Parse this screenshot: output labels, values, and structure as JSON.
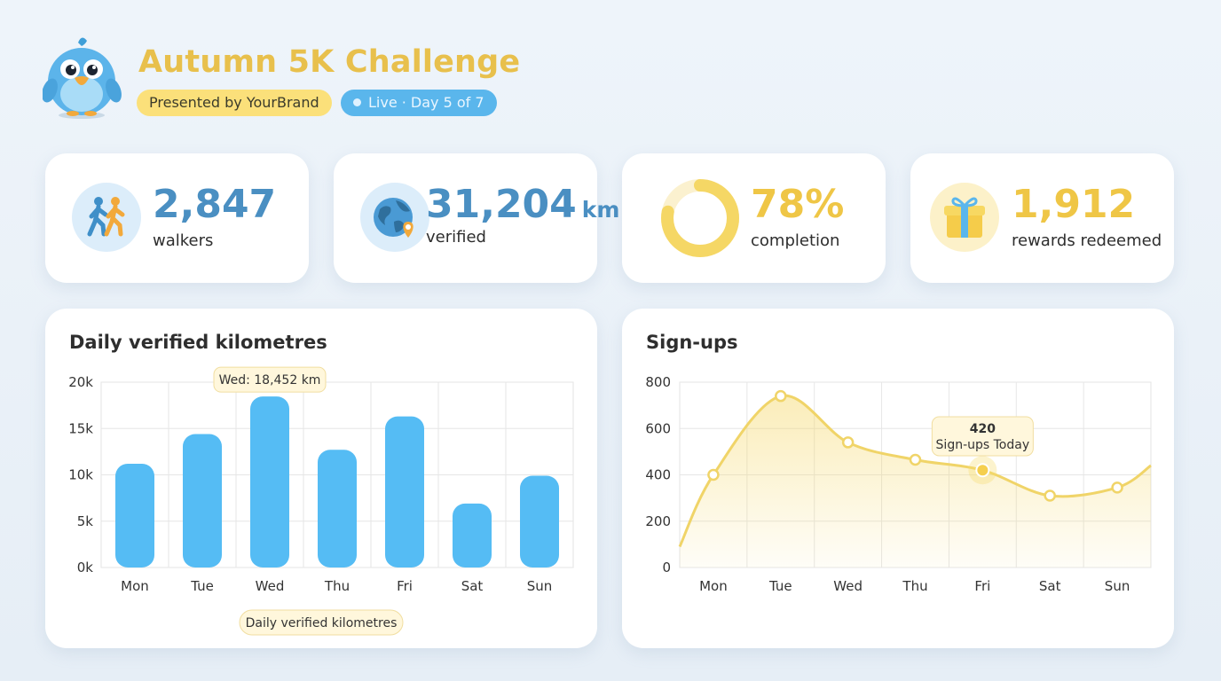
{
  "header": {
    "title": "Autumn 5K Challenge",
    "brand_pill": "Presented by YourBrand",
    "live_pill": "Live · Day 5 of 7"
  },
  "stats": [
    {
      "value": "2,847",
      "unit": "",
      "label": "walkers",
      "icon": "walkers-icon"
    },
    {
      "value": "31,204",
      "unit": "km",
      "label": "verified",
      "icon": "globe-location-icon"
    },
    {
      "value": "78%",
      "unit": "",
      "label": "completion",
      "icon": "progress-ring-icon",
      "progress": 0.78
    },
    {
      "value": "1,912",
      "unit": "",
      "label": "rewards redeemed",
      "icon": "gift-icon"
    }
  ],
  "colors": {
    "bar": "#55bcf4",
    "line": "#f0d468",
    "title_yellow": "#e8c04c",
    "stat_blue": "#4a8fc2"
  },
  "chart_data": [
    {
      "type": "bar",
      "title": "Daily verified kilometres",
      "categories": [
        "Mon",
        "Tue",
        "Wed",
        "Thu",
        "Fri",
        "Sat",
        "Sun"
      ],
      "values": [
        11200,
        14400,
        18452,
        12700,
        16300,
        6900,
        9900
      ],
      "ylim": [
        0,
        20000
      ],
      "yticks": [
        0,
        5000,
        10000,
        15000,
        20000
      ],
      "ytick_labels": [
        "0k",
        "5k",
        "10k",
        "15k",
        "20k"
      ],
      "tooltip": "Wed: 18,452 km",
      "legend": "Daily verified kilometres",
      "grid": true
    },
    {
      "type": "area",
      "title": "Sign-ups",
      "categories": [
        "Mon",
        "Tue",
        "Wed",
        "Thu",
        "Fri",
        "Sat",
        "Sun"
      ],
      "values": [
        400,
        740,
        540,
        465,
        420,
        310,
        345
      ],
      "ylim": [
        0,
        800
      ],
      "yticks": [
        0,
        200,
        400,
        600,
        800
      ],
      "tooltip_value": "420",
      "tooltip_label": "Sign-ups Today",
      "highlight_index": 4,
      "grid": true
    }
  ]
}
